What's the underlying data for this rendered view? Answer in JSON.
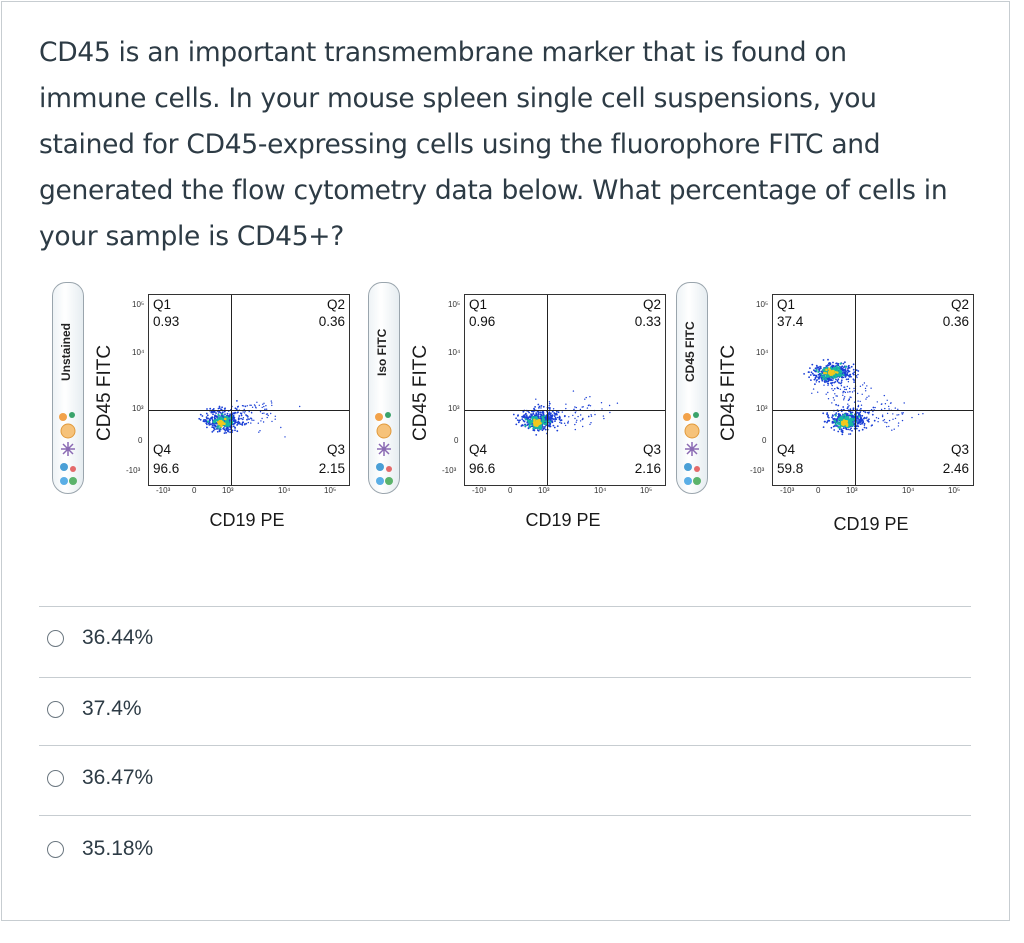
{
  "question": {
    "text": "CD45 is an important transmembrane marker that is found on immune cells. In your mouse spleen single cell suspensions, you stained for CD45-expressing cells using the fluorophore FITC and generated the flow cytometry data below. What percentage of cells in your sample is CD45+?"
  },
  "figure": {
    "panels": [
      {
        "tube_label": "Unstained",
        "y_axis": "CD45 FITC",
        "x_axis": "CD19 PE",
        "q1_label": "Q1",
        "q1_value": "0.93",
        "q2_label": "Q2",
        "q2_value": "0.36",
        "q3_label": "Q3",
        "q3_value": "2.15",
        "q4_label": "Q4",
        "q4_value": "96.6"
      },
      {
        "tube_label": "Iso FITC",
        "y_axis": "CD45 FITC",
        "x_axis": "CD19 PE",
        "q1_label": "Q1",
        "q1_value": "0.96",
        "q2_label": "Q2",
        "q2_value": "0.33",
        "q3_label": "Q3",
        "q3_value": "2.16",
        "q4_label": "Q4",
        "q4_value": "96.6"
      },
      {
        "tube_label": "CD45 FITC",
        "y_axis": "CD45 FITC",
        "x_axis": "CD19 PE",
        "q1_label": "Q1",
        "q1_value": "37.4",
        "q2_label": "Q2",
        "q2_value": "0.36",
        "q3_label": "Q3",
        "q3_value": "2.46",
        "q4_label": "Q4",
        "q4_value": "59.8"
      }
    ],
    "ticks": {
      "y": [
        "10⁵",
        "10⁴",
        "10³",
        "0",
        "-10³"
      ],
      "x": [
        "-10³",
        "0",
        "10³",
        "10⁴",
        "10⁵"
      ]
    },
    "colors": {
      "hot": "#f2c81c",
      "mid": "#19b8a0",
      "low": "#1a3fd6"
    }
  },
  "options": [
    {
      "label": "36.44%"
    },
    {
      "label": "37.4%"
    },
    {
      "label": "36.47%"
    },
    {
      "label": "35.18%"
    }
  ]
}
